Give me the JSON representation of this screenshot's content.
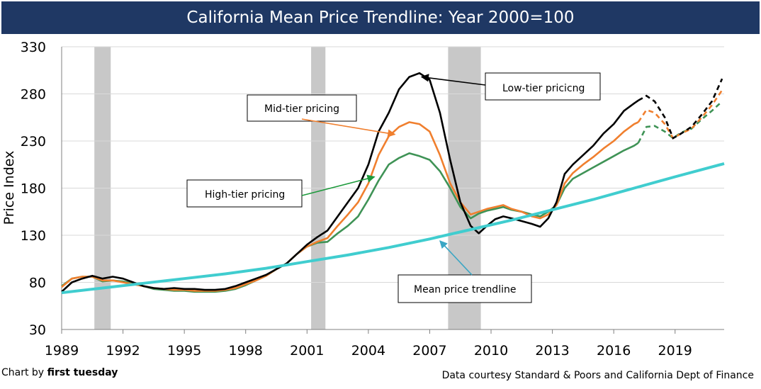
{
  "title": "California Mean Price Trendline: Year 2000=100",
  "footer": {
    "credit_prefix": "Chart by",
    "credit_brand": "first tuesday",
    "source": "Data courtesy Standard & Poors and California  Dept of Finance"
  },
  "annotations": {
    "low_tier": "Low-tier pricicng",
    "mid_tier": "Mid-tier pricing",
    "high_tier": "High-tier pricing",
    "trend": "Mean price trendline"
  },
  "colors": {
    "low": "#000000",
    "mid": "#f07f2e",
    "high": "#3f9356",
    "trend": "#40cdcf",
    "recession": "#c8c8c8",
    "title_bg": "#1f3864"
  },
  "chart_data": {
    "type": "line",
    "title": "California Mean Price Trendline: Year 2000=100",
    "xlabel": "",
    "ylabel": "Price Index",
    "xlim": [
      1989,
      2021.4
    ],
    "ylim": [
      30,
      330
    ],
    "xticks": [
      1989,
      1992,
      1995,
      1998,
      2001,
      2004,
      2007,
      2010,
      2013,
      2016,
      2019
    ],
    "yticks": [
      30,
      80,
      130,
      180,
      230,
      280,
      330
    ],
    "grid": "horizontal",
    "recessions": [
      [
        1990.6,
        1991.4
      ],
      [
        2001.2,
        2001.9
      ],
      [
        2007.9,
        2009.5
      ]
    ],
    "series": [
      {
        "key": "low",
        "x": [
          1989,
          1989.5,
          1990,
          1990.5,
          1991,
          1991.5,
          1992,
          1992.5,
          1993,
          1993.5,
          1994,
          1994.5,
          1995,
          1995.5,
          1996,
          1996.5,
          1997,
          1997.5,
          1998,
          1998.5,
          1999,
          1999.5,
          2000,
          2000.5,
          2001,
          2001.5,
          2002,
          2002.5,
          2003,
          2003.5,
          2004,
          2004.5,
          2005,
          2005.5,
          2006,
          2006.5,
          2007,
          2007.5,
          2008,
          2008.5,
          2009,
          2009.4,
          2009.8,
          2010.2,
          2010.6,
          2011,
          2011.5,
          2012,
          2012.4,
          2012.8,
          2013.2,
          2013.6,
          2014,
          2014.5,
          2015,
          2015.5,
          2016,
          2016.5,
          2017,
          2017.2,
          2017.6,
          2018,
          2018.5,
          2018.9,
          2019.3,
          2019.8,
          2020.3,
          2020.8,
          2021.3
        ],
        "y": [
          70,
          80,
          84,
          87,
          84,
          86,
          84,
          80,
          76,
          74,
          73,
          74,
          73,
          73,
          72,
          72,
          73,
          76,
          80,
          84,
          88,
          94,
          100,
          110,
          120,
          128,
          135,
          150,
          165,
          180,
          205,
          240,
          260,
          285,
          298,
          302,
          295,
          260,
          210,
          165,
          140,
          132,
          140,
          147,
          150,
          148,
          145,
          142,
          139,
          148,
          165,
          195,
          205,
          215,
          225,
          238,
          248,
          262,
          270,
          273,
          278,
          272,
          255,
          233,
          238,
          245,
          258,
          272,
          296
        ],
        "projected_from": 2017.2
      },
      {
        "key": "mid",
        "x": [
          1989,
          1989.5,
          1990,
          1990.5,
          1991,
          1991.5,
          1992,
          1992.5,
          1993,
          1993.5,
          1994,
          1994.5,
          1995,
          1995.5,
          1996,
          1996.5,
          1997,
          1997.5,
          1998,
          1998.5,
          1999,
          1999.5,
          2000,
          2000.5,
          2001,
          2001.5,
          2002,
          2002.5,
          2003,
          2003.5,
          2004,
          2004.5,
          2005,
          2005.5,
          2006,
          2006.5,
          2007,
          2007.5,
          2008,
          2008.5,
          2009,
          2009.4,
          2009.8,
          2010.2,
          2010.6,
          2011,
          2011.5,
          2012,
          2012.4,
          2012.8,
          2013.2,
          2013.6,
          2014,
          2014.5,
          2015,
          2015.5,
          2016,
          2016.5,
          2017,
          2017.2,
          2017.6,
          2018,
          2018.5,
          2018.9,
          2019.3,
          2019.8,
          2020.3,
          2020.8,
          2021.3
        ],
        "y": [
          75,
          84,
          86,
          86,
          82,
          82,
          80,
          78,
          76,
          74,
          73,
          72,
          72,
          71,
          71,
          71,
          72,
          74,
          78,
          82,
          87,
          94,
          100,
          110,
          118,
          123,
          127,
          140,
          152,
          165,
          185,
          215,
          235,
          245,
          250,
          248,
          240,
          215,
          185,
          165,
          152,
          155,
          158,
          160,
          162,
          158,
          155,
          150,
          148,
          152,
          162,
          185,
          196,
          205,
          213,
          222,
          230,
          240,
          248,
          250,
          263,
          260,
          248,
          233,
          238,
          243,
          255,
          268,
          284
        ],
        "projected_from": 2017.2
      },
      {
        "key": "high",
        "x": [
          1989,
          1989.5,
          1990,
          1990.5,
          1991,
          1991.5,
          1992,
          1992.5,
          1993,
          1993.5,
          1994,
          1994.5,
          1995,
          1995.5,
          1996,
          1996.5,
          1997,
          1997.5,
          1998,
          1998.5,
          1999,
          1999.5,
          2000,
          2000.5,
          2001,
          2001.5,
          2002,
          2002.5,
          2003,
          2003.5,
          2004,
          2004.5,
          2005,
          2005.5,
          2006,
          2006.5,
          2007,
          2007.5,
          2008,
          2008.5,
          2009,
          2009.4,
          2009.8,
          2010.2,
          2010.6,
          2011,
          2011.5,
          2012,
          2012.4,
          2012.8,
          2013.2,
          2013.6,
          2014,
          2014.5,
          2015,
          2015.5,
          2016,
          2016.5,
          2017,
          2017.2,
          2017.6,
          2018,
          2018.5,
          2018.9,
          2019.3,
          2019.8,
          2020.3,
          2020.8,
          2021.3
        ],
        "y": [
          76,
          84,
          86,
          86,
          81,
          82,
          81,
          79,
          76,
          73,
          72,
          71,
          71,
          70,
          70,
          70,
          71,
          73,
          77,
          82,
          87,
          94,
          100,
          110,
          118,
          122,
          123,
          132,
          140,
          150,
          168,
          188,
          205,
          212,
          217,
          214,
          210,
          198,
          180,
          160,
          148,
          153,
          156,
          158,
          160,
          157,
          155,
          152,
          150,
          155,
          162,
          180,
          190,
          196,
          202,
          208,
          214,
          220,
          225,
          228,
          245,
          246,
          240,
          233,
          239,
          243,
          253,
          262,
          272
        ],
        "projected_from": 2017.2
      },
      {
        "key": "trend",
        "x": [
          1989,
          1991,
          1993,
          1995,
          1997,
          1999,
          2001,
          2003,
          2005,
          2007,
          2009,
          2011,
          2013,
          2015,
          2017,
          2019,
          2021.4
        ],
        "y": [
          69,
          74,
          79,
          84,
          89,
          95,
          102,
          109,
          117,
          126,
          136,
          146,
          157,
          168,
          180,
          192,
          206
        ]
      }
    ]
  }
}
